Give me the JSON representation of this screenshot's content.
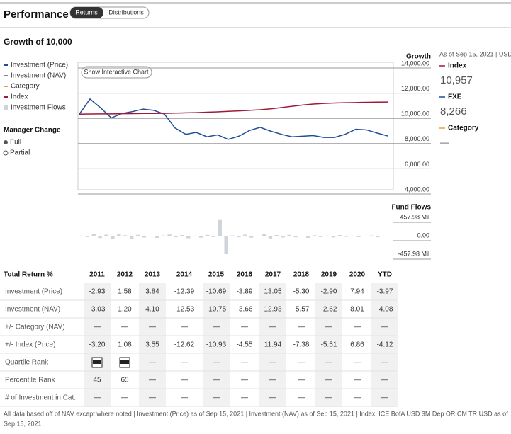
{
  "header": {
    "title": "Performance",
    "tabs": [
      "Returns",
      "Distributions"
    ],
    "subtitle": "Growth of 10,000"
  },
  "legend": [
    {
      "name": "Investment (Price)",
      "color": "#1f4e99"
    },
    {
      "name": "Investment (NAV)",
      "color": "#888888"
    },
    {
      "name": "Category",
      "color": "#f0a030"
    },
    {
      "name": "Index",
      "color": "#9b1c3a"
    },
    {
      "name": "Investment Flows",
      "color": "#cfd3dc"
    }
  ],
  "manager": {
    "title": "Manager Change",
    "items": [
      "Full",
      "Partial"
    ]
  },
  "button": "Show Interactive Chart",
  "side": {
    "asof": "As of Sep 15, 2021 | USD",
    "items": [
      {
        "name": "Index",
        "value": "10,957",
        "color": "#9b1c3a"
      },
      {
        "name": "FXE",
        "value": "8,266",
        "color": "#1f4e99"
      },
      {
        "name": "Category",
        "value": "—",
        "color": "#f0a030"
      }
    ]
  },
  "chart_data": [
    {
      "type": "line",
      "title": "Growth",
      "ylim": [
        4000,
        14000
      ],
      "yticks": [
        {
          "value": 4000,
          "label": "4,000.00"
        },
        {
          "value": 6000,
          "label": "6,000.00"
        },
        {
          "value": 8000,
          "label": "8,000.00"
        },
        {
          "value": 10000,
          "label": "10,000.00"
        },
        {
          "value": 12000,
          "label": "12,000.00"
        },
        {
          "value": 14000,
          "label": "14,000.00"
        }
      ],
      "series": [
        {
          "color": "#1f4e99",
          "values": [
            10000,
            11200,
            10500,
            9700,
            10050,
            10200,
            10400,
            10300,
            10000,
            8900,
            8400,
            8550,
            8200,
            8350,
            8000,
            8250,
            8700,
            8950,
            8650,
            8400,
            8200,
            8250,
            8300,
            8150,
            8150,
            8400,
            8800,
            8750,
            8500,
            8266
          ]
        },
        {
          "color": "#9b1c3a",
          "values": [
            10000,
            10010,
            10020,
            10020,
            10030,
            10040,
            10050,
            10050,
            10060,
            10080,
            10100,
            10120,
            10150,
            10180,
            10220,
            10260,
            10300,
            10350,
            10420,
            10520,
            10620,
            10720,
            10800,
            10850,
            10880,
            10900,
            10920,
            10940,
            10950,
            10957
          ]
        }
      ]
    },
    {
      "type": "bar",
      "title": "Fund Flows",
      "color": "#cfd3dc",
      "ylim": [
        -457.98,
        457.98
      ],
      "yticks": [
        {
          "value": 457.98,
          "label": "457.98 Mil"
        },
        {
          "value": 0,
          "label": "0.00"
        },
        {
          "value": -457.98,
          "label": "-457.98 Mil"
        }
      ],
      "values": [
        20,
        -15,
        60,
        -40,
        45,
        -70,
        55,
        30,
        -60,
        40,
        -25,
        15,
        -35,
        25,
        50,
        -20,
        35,
        -45,
        20,
        -30,
        40,
        -15,
        410,
        -440,
        25,
        -20,
        45,
        -30,
        15,
        60,
        -50,
        35,
        -25,
        40,
        -20,
        15,
        -35,
        30,
        -15,
        20,
        -25,
        35,
        -10,
        20,
        -15,
        10,
        25,
        -20,
        15,
        10
      ]
    }
  ],
  "table": {
    "header": "Total Return %",
    "columns": [
      "2011",
      "2012",
      "2013",
      "2014",
      "2015",
      "2016",
      "2017",
      "2018",
      "2019",
      "2020",
      "YTD"
    ],
    "rows": [
      {
        "label": "Investment (Price)",
        "cells": [
          "-2.93",
          "1.58",
          "3.84",
          "-12.39",
          "-10.69",
          "-3.89",
          "13.05",
          "-5.30",
          "-2.90",
          "7.94",
          "-3.97"
        ]
      },
      {
        "label": "Investment (NAV)",
        "cells": [
          "-3.03",
          "1.20",
          "4.10",
          "-12.53",
          "-10.75",
          "-3.66",
          "12.93",
          "-5.57",
          "-2.62",
          "8.01",
          "-4.08"
        ]
      },
      {
        "label": "+/- Category (NAV)",
        "cells": [
          "—",
          "—",
          "—",
          "—",
          "—",
          "—",
          "—",
          "—",
          "—",
          "—",
          "—"
        ]
      },
      {
        "label": "+/- Index (Price)",
        "cells": [
          "-3.20",
          "1.08",
          "3.55",
          "-12.62",
          "-10.93",
          "-4.55",
          "11.94",
          "-7.38",
          "-5.51",
          "6.86",
          "-4.12"
        ]
      },
      {
        "label": "Quartile Rank",
        "cells": [
          null,
          null,
          "—",
          "—",
          "—",
          "—",
          "—",
          "—",
          "—",
          "—",
          "—"
        ]
      },
      {
        "label": "Percentile Rank",
        "cells": [
          "45",
          "65",
          "—",
          "—",
          "—",
          "—",
          "—",
          "—",
          "—",
          "—",
          "—"
        ]
      },
      {
        "label": "# of Investment in Cat.",
        "cells": [
          "—",
          "—",
          "—",
          "—",
          "—",
          "—",
          "—",
          "—",
          "—",
          "—",
          "—"
        ]
      }
    ]
  },
  "footnote": [
    "All data based off of NAV except where noted | Investment (Price) as of Sep 15, 2021 | Investment (NAV) as of Sep 15, 2021 | Index: ICE BofA USD 3M Dep OR CM TR USD as of",
    "Sep 15, 2021"
  ]
}
